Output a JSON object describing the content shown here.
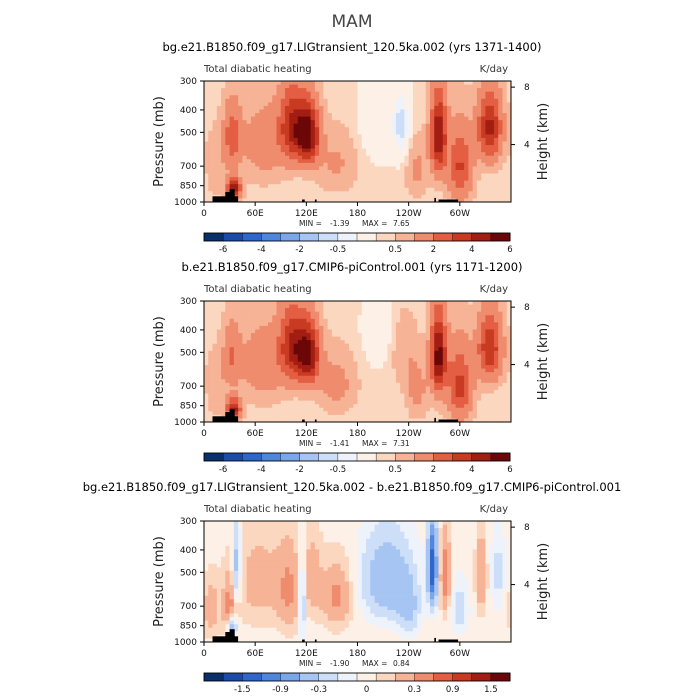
{
  "figure": {
    "title": "MAM"
  },
  "chart_data": [
    {
      "type": "heatmap",
      "title": "bg.e21.B1850.f09_g17.LIGtransient_120.5ka.002 (yrs 1371-1400)",
      "variable": "Total diabatic heating",
      "units": "K/day",
      "xlabel": "",
      "ylabel": "Pressure (mb)",
      "ylabel_right": "Height (km)",
      "x_ticks": [
        "0",
        "60E",
        "120E",
        "180",
        "120W",
        "60W"
      ],
      "x_tick_lon": [
        0,
        60,
        120,
        180,
        240,
        300
      ],
      "xlim": [
        0,
        360
      ],
      "y_ticks": [
        "300",
        "400",
        "500",
        "700",
        "850",
        "1000"
      ],
      "y_tick_p": [
        300,
        400,
        500,
        700,
        850,
        1000
      ],
      "ylim": [
        1000,
        300
      ],
      "right_ticks": [
        "8",
        "4"
      ],
      "right_tick_km": [
        8,
        4
      ],
      "min_label": "MIN =",
      "min": "-1.39",
      "max_label": "MAX =",
      "max": "7.65",
      "colorbar": {
        "levels": [
          -6,
          -5,
          -4,
          -3,
          -2,
          -1,
          -0.5,
          -0.25,
          0.25,
          0.5,
          1,
          2,
          3,
          4,
          5,
          6
        ],
        "labels": [
          "-6",
          "-4",
          "-2",
          "-0.5",
          "0.5",
          "2",
          "4",
          "6"
        ],
        "label_levels": [
          -6,
          -4,
          -2,
          -0.5,
          0.5,
          2,
          4,
          6
        ]
      },
      "features": [
        {
          "lon": 15,
          "w": 12,
          "base": 0.3,
          "amp": 0.6,
          "pc": 700,
          "pw": 220
        },
        {
          "lon": 35,
          "w": 8,
          "base": 0,
          "amp": 4.6,
          "pc": 880,
          "pw": 90
        },
        {
          "lon": 33,
          "w": 10,
          "base": 0,
          "amp": 2.2,
          "pc": 520,
          "pw": 160
        },
        {
          "lon": 70,
          "w": 28,
          "base": 0,
          "amp": 1.2,
          "pc": 560,
          "pw": 220
        },
        {
          "lon": 103,
          "w": 15,
          "base": 0,
          "amp": 3.6,
          "pc": 470,
          "pw": 170
        },
        {
          "lon": 122,
          "w": 13,
          "base": 0,
          "amp": 5.2,
          "pc": 510,
          "pw": 150
        },
        {
          "lon": 155,
          "w": 22,
          "base": 0,
          "amp": 0.8,
          "pc": 680,
          "pw": 200
        },
        {
          "lon": 205,
          "w": 20,
          "base": 0,
          "amp": -0.55,
          "pc": 450,
          "pw": 160
        },
        {
          "lon": 232,
          "w": 10,
          "base": 0,
          "amp": -0.9,
          "pc": 470,
          "pw": 160
        },
        {
          "lon": 250,
          "w": 12,
          "base": 0,
          "amp": 0.9,
          "pc": 730,
          "pw": 200
        },
        {
          "lon": 275,
          "w": 9,
          "base": 0,
          "amp": 4.8,
          "pc": 520,
          "pw": 200
        },
        {
          "lon": 300,
          "w": 14,
          "base": 0,
          "amp": 2.8,
          "pc": 700,
          "pw": 250
        },
        {
          "lon": 335,
          "w": 14,
          "base": 0,
          "amp": 4.0,
          "pc": 480,
          "pw": 160
        }
      ],
      "topography": [
        {
          "lon0": 10,
          "lon1": 40,
          "p": 945
        },
        {
          "lon0": 25,
          "lon1": 35,
          "p": 905
        },
        {
          "lon0": 30,
          "lon1": 36,
          "p": 880
        },
        {
          "lon0": 115,
          "lon1": 118,
          "p": 975
        },
        {
          "lon0": 130,
          "lon1": 132,
          "p": 975
        },
        {
          "lon0": 270,
          "lon1": 272,
          "p": 960
        },
        {
          "lon0": 275,
          "lon1": 298,
          "p": 975
        }
      ]
    },
    {
      "type": "heatmap",
      "title": "b.e21.B1850.f09_g17.CMIP6-piControl.001 (yrs 1171-1200)",
      "variable": "Total diabatic heating",
      "units": "K/day",
      "xlabel": "",
      "ylabel": "Pressure (mb)",
      "ylabel_right": "Height (km)",
      "x_ticks": [
        "0",
        "60E",
        "120E",
        "180",
        "120W",
        "60W"
      ],
      "x_tick_lon": [
        0,
        60,
        120,
        180,
        240,
        300
      ],
      "xlim": [
        0,
        360
      ],
      "y_ticks": [
        "300",
        "400",
        "500",
        "700",
        "850",
        "1000"
      ],
      "y_tick_p": [
        300,
        400,
        500,
        700,
        850,
        1000
      ],
      "ylim": [
        1000,
        300
      ],
      "right_ticks": [
        "8",
        "4"
      ],
      "right_tick_km": [
        8,
        4
      ],
      "min_label": "MIN =",
      "min": "-1.41",
      "max_label": "MAX =",
      "max": "7.31",
      "colorbar": {
        "levels": [
          -6,
          -5,
          -4,
          -3,
          -2,
          -1,
          -0.5,
          -0.25,
          0.25,
          0.5,
          1,
          2,
          3,
          4,
          5,
          6
        ],
        "labels": [
          "-6",
          "-4",
          "-2",
          "-0.5",
          "0.5",
          "2",
          "4",
          "6"
        ],
        "label_levels": [
          -6,
          -4,
          -2,
          -0.5,
          0.5,
          2,
          4,
          6
        ]
      },
      "features": [
        {
          "lon": 15,
          "w": 12,
          "base": 0.3,
          "amp": 0.6,
          "pc": 700,
          "pw": 220
        },
        {
          "lon": 35,
          "w": 8,
          "base": 0,
          "amp": 4.2,
          "pc": 880,
          "pw": 90
        },
        {
          "lon": 33,
          "w": 10,
          "base": 0,
          "amp": 1.6,
          "pc": 520,
          "pw": 160
        },
        {
          "lon": 70,
          "w": 28,
          "base": 0,
          "amp": 1.3,
          "pc": 560,
          "pw": 220
        },
        {
          "lon": 103,
          "w": 15,
          "base": 0,
          "amp": 3.5,
          "pc": 470,
          "pw": 170
        },
        {
          "lon": 122,
          "w": 13,
          "base": 0,
          "amp": 5.0,
          "pc": 510,
          "pw": 150
        },
        {
          "lon": 155,
          "w": 22,
          "base": 0,
          "amp": 1.0,
          "pc": 680,
          "pw": 200
        },
        {
          "lon": 205,
          "w": 20,
          "base": 0,
          "amp": -0.3,
          "pc": 420,
          "pw": 140
        },
        {
          "lon": 235,
          "w": 15,
          "base": 0,
          "amp": 0.6,
          "pc": 500,
          "pw": 180
        },
        {
          "lon": 250,
          "w": 12,
          "base": 0,
          "amp": 1.0,
          "pc": 730,
          "pw": 200
        },
        {
          "lon": 275,
          "w": 9,
          "base": 0,
          "amp": 5.2,
          "pc": 520,
          "pw": 200
        },
        {
          "lon": 300,
          "w": 14,
          "base": 0,
          "amp": 3.0,
          "pc": 700,
          "pw": 250
        },
        {
          "lon": 335,
          "w": 14,
          "base": 0,
          "amp": 3.6,
          "pc": 480,
          "pw": 160
        }
      ],
      "topography": [
        {
          "lon0": 10,
          "lon1": 40,
          "p": 945
        },
        {
          "lon0": 25,
          "lon1": 35,
          "p": 905
        },
        {
          "lon0": 30,
          "lon1": 36,
          "p": 880
        },
        {
          "lon0": 115,
          "lon1": 118,
          "p": 975
        },
        {
          "lon0": 130,
          "lon1": 132,
          "p": 975
        },
        {
          "lon0": 270,
          "lon1": 272,
          "p": 960
        },
        {
          "lon0": 275,
          "lon1": 298,
          "p": 975
        }
      ]
    },
    {
      "type": "heatmap",
      "title": "bg.e21.B1850.f09_g17.LIGtransient_120.5ka.002 - b.e21.B1850.f09_g17.CMIP6-piControl.001",
      "variable": "Total diabatic heating",
      "units": "K/day",
      "xlabel": "",
      "ylabel": "Pressure (mb)",
      "ylabel_right": "Height (km)",
      "x_ticks": [
        "0",
        "60E",
        "120E",
        "180",
        "120W",
        "60W"
      ],
      "x_tick_lon": [
        0,
        60,
        120,
        180,
        240,
        300
      ],
      "xlim": [
        0,
        360
      ],
      "y_ticks": [
        "300",
        "400",
        "500",
        "700",
        "850",
        "1000"
      ],
      "y_tick_p": [
        300,
        400,
        500,
        700,
        850,
        1000
      ],
      "ylim": [
        1000,
        300
      ],
      "right_ticks": [
        "8",
        "4"
      ],
      "right_tick_km": [
        8,
        4
      ],
      "min_label": "MIN =",
      "min": "-1.90",
      "max_label": "MAX =",
      "max": "0.84",
      "colorbar": {
        "levels": [
          -1.8,
          -1.5,
          -1.2,
          -0.9,
          -0.6,
          -0.3,
          -0.15,
          -0.05,
          0.05,
          0.15,
          0.3,
          0.6,
          0.9,
          1.2,
          1.5,
          1.8
        ],
        "labels": [
          "-1.5",
          "-0.9",
          "-0.3",
          "0",
          "0.3",
          "0.9",
          "1.5"
        ],
        "label_levels": [
          -1.5,
          -0.9,
          -0.3,
          0,
          0.3,
          0.9,
          1.5
        ]
      },
      "features": [
        {
          "lon": 8,
          "w": 10,
          "base": 0,
          "amp": 0.25,
          "pc": 720,
          "pw": 200
        },
        {
          "lon": 30,
          "w": 8,
          "base": 0,
          "amp": 0.35,
          "pc": 700,
          "pw": 200
        },
        {
          "lon": 38,
          "w": 5,
          "base": 0,
          "amp": -0.45,
          "pc": 480,
          "pw": 200
        },
        {
          "lon": 33,
          "w": 5,
          "base": 0,
          "amp": -0.6,
          "pc": 850,
          "pw": 80
        },
        {
          "lon": 65,
          "w": 30,
          "base": 0,
          "amp": 0.22,
          "pc": 550,
          "pw": 260
        },
        {
          "lon": 100,
          "w": 14,
          "base": 0,
          "amp": 0.3,
          "pc": 600,
          "pw": 260
        },
        {
          "lon": 115,
          "w": 4,
          "base": 0,
          "amp": -0.45,
          "pc": 650,
          "pw": 260
        },
        {
          "lon": 127,
          "w": 10,
          "base": 0,
          "amp": 0.25,
          "pc": 520,
          "pw": 200
        },
        {
          "lon": 155,
          "w": 18,
          "base": 0,
          "amp": 0.35,
          "pc": 640,
          "pw": 200
        },
        {
          "lon": 215,
          "w": 28,
          "base": 0,
          "amp": -0.55,
          "pc": 540,
          "pw": 220
        },
        {
          "lon": 240,
          "w": 12,
          "base": 0,
          "amp": -0.35,
          "pc": 720,
          "pw": 180
        },
        {
          "lon": 268,
          "w": 5,
          "base": 0,
          "amp": -1.5,
          "pc": 480,
          "pw": 180
        },
        {
          "lon": 283,
          "w": 6,
          "base": 0,
          "amp": 0.45,
          "pc": 520,
          "pw": 200
        },
        {
          "lon": 300,
          "w": 10,
          "base": 0,
          "amp": -0.25,
          "pc": 720,
          "pw": 180
        },
        {
          "lon": 325,
          "w": 6,
          "base": 0,
          "amp": 0.35,
          "pc": 520,
          "pw": 200
        },
        {
          "lon": 345,
          "w": 8,
          "base": 0,
          "amp": -0.2,
          "pc": 500,
          "pw": 200
        }
      ],
      "topography": [
        {
          "lon0": 10,
          "lon1": 40,
          "p": 945
        },
        {
          "lon0": 25,
          "lon1": 35,
          "p": 905
        },
        {
          "lon0": 30,
          "lon1": 36,
          "p": 880
        },
        {
          "lon0": 115,
          "lon1": 118,
          "p": 975
        },
        {
          "lon0": 130,
          "lon1": 132,
          "p": 975
        },
        {
          "lon0": 270,
          "lon1": 272,
          "p": 960
        },
        {
          "lon0": 275,
          "lon1": 298,
          "p": 975
        }
      ]
    }
  ],
  "colors": {
    "palette": [
      "#08306b",
      "#1a4ba8",
      "#2e66cc",
      "#4f86dd",
      "#7aa6ea",
      "#a6c5f2",
      "#cddff8",
      "#eef3fb",
      "#fdf0e6",
      "#fbd7c0",
      "#f7b396",
      "#f08c6e",
      "#e35e43",
      "#c93a22",
      "#a21d12",
      "#6b0707"
    ],
    "topography": "#000000"
  }
}
